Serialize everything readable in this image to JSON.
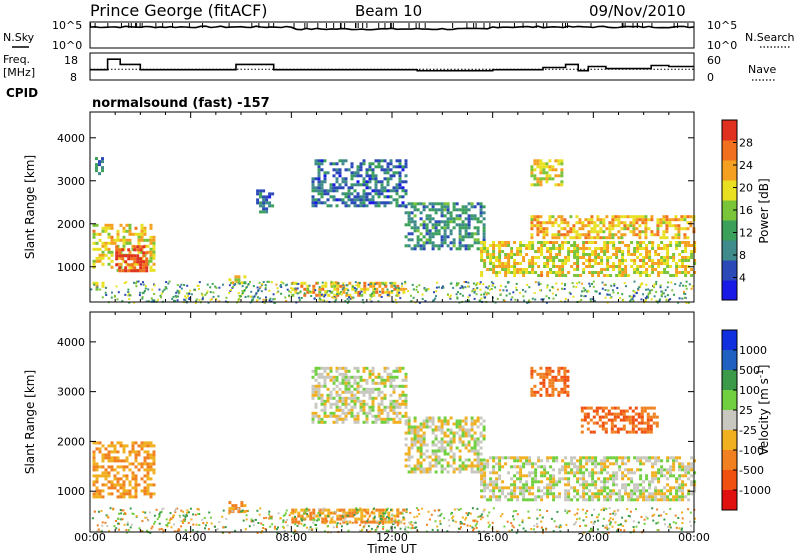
{
  "header": {
    "station": "Prince George (fitACF)",
    "beam": "Beam 10",
    "date": "09/Nov/2010"
  },
  "params": {
    "nsky_label": "N.Sky",
    "nsearch_label": "N.Search",
    "freq_label_line1": "Freq.",
    "freq_label_line2": "[MHz]",
    "nave_label": "Nave",
    "cpid_label": "CPID",
    "cpid_text": "normalsound (fast) -157",
    "noise_ticks": [
      "10^5",
      "10^0"
    ],
    "freq_ticks": [
      "18",
      "8"
    ],
    "nave_ticks": [
      "60",
      "0"
    ],
    "freq_steps": [
      {
        "t": 0.0,
        "v": 11.5
      },
      {
        "t": 0.7,
        "v": 16.5
      },
      {
        "t": 1.2,
        "v": 14.0
      },
      {
        "t": 2.0,
        "v": 11.5
      },
      {
        "t": 5.8,
        "v": 14.0
      },
      {
        "t": 7.3,
        "v": 11.5
      },
      {
        "t": 13.0,
        "v": 11.0
      },
      {
        "t": 16.0,
        "v": 11.5
      },
      {
        "t": 18.0,
        "v": 12.5
      },
      {
        "t": 18.9,
        "v": 14.0
      },
      {
        "t": 19.4,
        "v": 11.0
      },
      {
        "t": 19.8,
        "v": 13.0
      },
      {
        "t": 20.5,
        "v": 12.0
      },
      {
        "t": 22.3,
        "v": 13.5
      },
      {
        "t": 23.0,
        "v": 13.0
      },
      {
        "t": 24.0,
        "v": 13.0
      }
    ],
    "nave_level": 22
  },
  "chart_data": [
    {
      "type": "heatmap",
      "name": "Power",
      "ylabel": "Slant Range [km]",
      "yticks": [
        1000,
        2000,
        3000,
        4000
      ],
      "ylim": [
        180,
        4600
      ],
      "xlim": [
        0,
        24
      ],
      "colorbar": {
        "label": "Power [dB]",
        "range": [
          0,
          32
        ],
        "ticks": [
          4,
          8,
          12,
          16,
          20,
          24,
          28
        ],
        "colors": [
          "#1a1ae6",
          "#2b4ab8",
          "#3f8a8a",
          "#3aa05a",
          "#7ac43a",
          "#e8e020",
          "#f5a020",
          "#f07020",
          "#e03020"
        ]
      },
      "regions": [
        {
          "t0": 0.1,
          "t1": 2.5,
          "r0": 900,
          "r1": 2000,
          "v": 20
        },
        {
          "t0": 1.0,
          "t1": 2.2,
          "r0": 900,
          "r1": 1500,
          "v": 30
        },
        {
          "t0": 0.2,
          "t1": 0.5,
          "r0": 3200,
          "r1": 3550,
          "v": 8
        },
        {
          "t0": 0.1,
          "t1": 0.5,
          "r0": 450,
          "r1": 650,
          "v": 18
        },
        {
          "t0": 6.6,
          "t1": 7.2,
          "r0": 2300,
          "r1": 2800,
          "v": 8
        },
        {
          "t0": 8.8,
          "t1": 12.5,
          "r0": 2400,
          "r1": 3500,
          "v": 8
        },
        {
          "t0": 12.5,
          "t1": 15.6,
          "r0": 1400,
          "r1": 2500,
          "v": 10
        },
        {
          "t0": 15.5,
          "t1": 24.0,
          "r0": 800,
          "r1": 1600,
          "v": 20
        },
        {
          "t0": 17.5,
          "t1": 24.0,
          "r0": 1700,
          "r1": 2200,
          "v": 22
        },
        {
          "t0": 17.5,
          "t1": 18.8,
          "r0": 2900,
          "r1": 3500,
          "v": 20
        },
        {
          "t0": 5.5,
          "t1": 6.2,
          "r0": 600,
          "r1": 800,
          "v": 18
        },
        {
          "t0": 8.0,
          "t1": 12.5,
          "r0": 350,
          "r1": 650,
          "v": 22
        }
      ]
    },
    {
      "type": "heatmap",
      "name": "Velocity",
      "ylabel": "Slant Range [km]",
      "xlabel": "Time UT",
      "xticks": [
        "00:00",
        "04:00",
        "08:00",
        "12:00",
        "16:00",
        "20:00",
        "00:00"
      ],
      "yticks": [
        1000,
        2000,
        3000,
        4000
      ],
      "ylim": [
        180,
        4600
      ],
      "xlim": [
        0,
        24
      ],
      "colorbar": {
        "label": "Velocity [m s^-1]",
        "ticks": [
          "1000",
          "500",
          "100",
          "25",
          "-25",
          "-100",
          "-500",
          "-1000"
        ],
        "colors": [
          "#1030e0",
          "#2060c0",
          "#3a9a4a",
          "#70d040",
          "#c8c8c0",
          "#f0b020",
          "#f08020",
          "#f05010",
          "#e01010"
        ]
      },
      "regions": [
        {
          "t0": 0.1,
          "t1": 2.5,
          "r0": 900,
          "r1": 2000,
          "v": -100
        },
        {
          "t0": 8.8,
          "t1": 12.5,
          "r0": 2400,
          "r1": 3500,
          "v": 0
        },
        {
          "t0": 12.5,
          "t1": 15.6,
          "r0": 1400,
          "r1": 2500,
          "v": 0
        },
        {
          "t0": 15.5,
          "t1": 24.0,
          "r0": 800,
          "r1": 1700,
          "v": 0
        },
        {
          "t0": 17.5,
          "t1": 19.0,
          "r0": 2900,
          "r1": 3500,
          "v": -500
        },
        {
          "t0": 19.5,
          "t1": 22.5,
          "r0": 2200,
          "r1": 2700,
          "v": -500
        },
        {
          "t0": 5.5,
          "t1": 6.2,
          "r0": 600,
          "r1": 800,
          "v": -100
        },
        {
          "t0": 8.0,
          "t1": 12.5,
          "r0": 350,
          "r1": 650,
          "v": -100
        }
      ]
    }
  ]
}
